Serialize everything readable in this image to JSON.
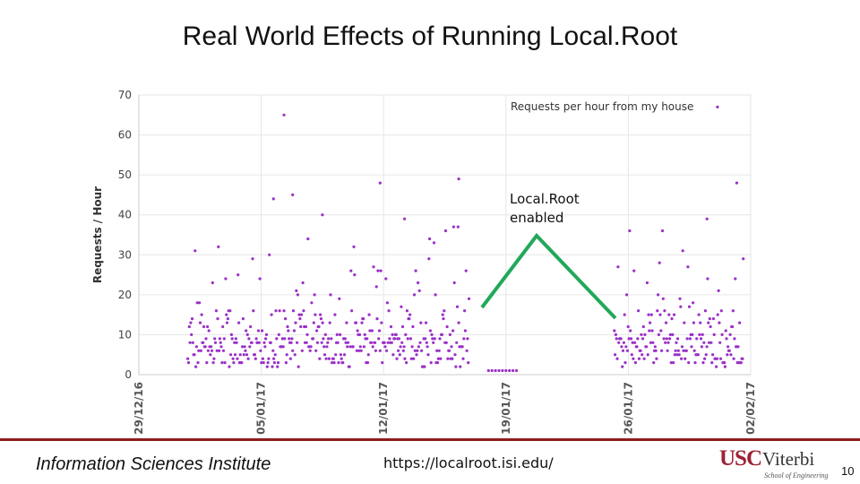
{
  "slide": {
    "title": "Real World Effects of Running Local.Root",
    "annotation_line1": "Local.Root",
    "annotation_line2": "enabled",
    "footer_org": "Information Sciences Institute",
    "footer_url": "https://localroot.isi.edu/",
    "logo_usc": "USC",
    "logo_viterbi": "Viterbi",
    "logo_sub": "School of Engineering",
    "page_number": "10"
  },
  "colors": {
    "points": "#9b30c8",
    "annotation_arrow": "#22a85a",
    "grid": "#e6e6e6",
    "axis": "#cccccc",
    "footer_rule": "#8c1c1c"
  },
  "chart_data": {
    "type": "scatter",
    "title": "",
    "legend": "Requests per hour from my house",
    "legend_position": "top-right",
    "xlabel": "",
    "ylabel": "Requests / Hour",
    "ylim": [
      0,
      70
    ],
    "yticks": [
      0,
      10,
      20,
      30,
      40,
      50,
      60,
      70
    ],
    "xlim_days": [
      0,
      35
    ],
    "xticks": [
      {
        "day": 0,
        "label": "29/12/16"
      },
      {
        "day": 7,
        "label": "05/01/17"
      },
      {
        "day": 14,
        "label": "12/01/17"
      },
      {
        "day": 21,
        "label": "19/01/17"
      },
      {
        "day": 28,
        "label": "26/01/17"
      },
      {
        "day": 35,
        "label": "02/02/17"
      }
    ],
    "grid": true,
    "segments": [
      {
        "start_day": 2.8,
        "end_day": 18.9,
        "note": "hourly requests before Local.Root"
      },
      {
        "start_day": 20.0,
        "end_day": 21.6,
        "note": "near zero"
      },
      {
        "start_day": 27.2,
        "end_day": 34.6,
        "note": "hourly requests after"
      }
    ],
    "outliers": [
      {
        "day": 8.3,
        "value": 65
      },
      {
        "day": 8.8,
        "value": 45
      },
      {
        "day": 7.7,
        "value": 44
      },
      {
        "day": 13.8,
        "value": 48
      },
      {
        "day": 18.3,
        "value": 49
      },
      {
        "day": 33.1,
        "value": 67
      },
      {
        "day": 34.2,
        "value": 48
      },
      {
        "day": 10.5,
        "value": 40
      },
      {
        "day": 15.2,
        "value": 39
      },
      {
        "day": 32.5,
        "value": 39
      }
    ]
  }
}
